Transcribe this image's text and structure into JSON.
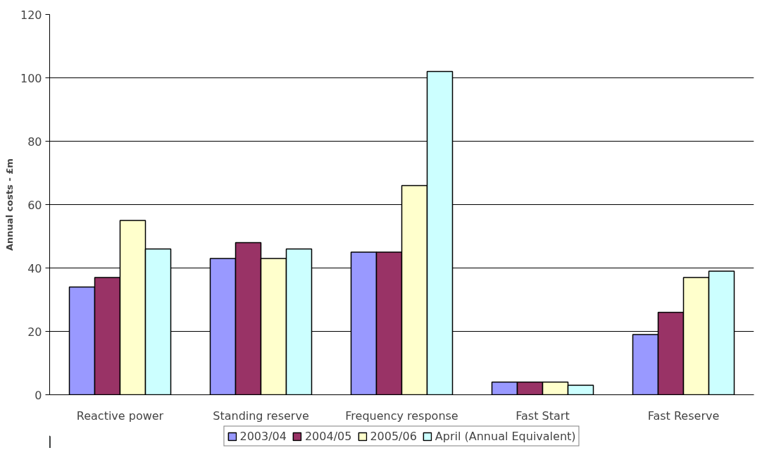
{
  "chart_data": {
    "type": "bar",
    "ylabel": "Annual costs - £m",
    "categories": [
      "Reactive power",
      "Standing reserve",
      "Frequency response",
      "Fast Start",
      "Fast Reserve"
    ],
    "series": [
      {
        "name": "2003/04",
        "color": "#9999ff",
        "values": [
          34,
          43,
          45,
          4,
          19
        ]
      },
      {
        "name": "2004/05",
        "color": "#993366",
        "values": [
          37,
          48,
          45,
          4,
          26
        ]
      },
      {
        "name": "2005/06",
        "color": "#ffffcc",
        "values": [
          55,
          43,
          66,
          4,
          37
        ]
      },
      {
        "name": "April (Annual Equivalent)",
        "color": "#ccffff",
        "values": [
          46,
          46,
          102,
          3,
          39
        ]
      }
    ],
    "ylim": [
      0,
      120
    ],
    "yticks": [
      0,
      20,
      40,
      60,
      80,
      100,
      120
    ],
    "grid": "y",
    "legend": "bottom"
  }
}
